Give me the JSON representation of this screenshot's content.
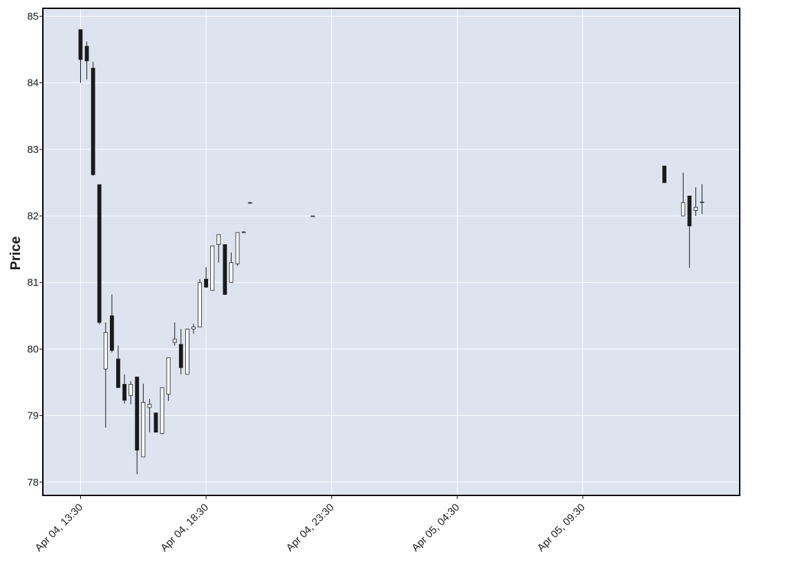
{
  "chart_data": {
    "type": "candlestick",
    "title": "",
    "xlabel": "",
    "ylabel": "Price",
    "ylim": [
      77.8,
      85.12
    ],
    "y_ticks": [
      78,
      79,
      80,
      81,
      82,
      83,
      84,
      85
    ],
    "x_ticks": [
      "Apr 04, 13:30",
      "Apr 04, 18:30",
      "Apr 04, 23:30",
      "Apr 05, 04:30",
      "Apr 05, 09:30"
    ],
    "x_tick_hours": [
      0,
      5,
      10,
      15,
      20
    ],
    "x_range_hours": [
      -1.5,
      26.25
    ],
    "grid": true,
    "colors": {
      "background": "#dde3ef",
      "grid": "#ffffff",
      "up_fill": "#ffffff",
      "down_fill": "#1a1a1a",
      "edge": "#1a1a1a"
    },
    "candles": [
      {
        "t": 0.0,
        "o": 84.8,
        "h": 84.8,
        "l": 84.0,
        "c": 84.35
      },
      {
        "t": 0.25,
        "o": 84.55,
        "h": 84.62,
        "l": 84.05,
        "c": 84.33
      },
      {
        "t": 0.5,
        "o": 84.22,
        "h": 84.32,
        "l": 82.6,
        "c": 82.62
      },
      {
        "t": 0.75,
        "o": 82.47,
        "h": 82.47,
        "l": 80.37,
        "c": 80.4
      },
      {
        "t": 1.0,
        "o": 79.7,
        "h": 80.4,
        "l": 78.82,
        "c": 80.25
      },
      {
        "t": 1.25,
        "o": 80.5,
        "h": 80.82,
        "l": 79.95,
        "c": 79.98
      },
      {
        "t": 1.5,
        "o": 79.85,
        "h": 80.05,
        "l": 79.42,
        "c": 79.42
      },
      {
        "t": 1.75,
        "o": 79.47,
        "h": 79.62,
        "l": 79.18,
        "c": 79.23
      },
      {
        "t": 2.0,
        "o": 79.3,
        "h": 79.52,
        "l": 79.17,
        "c": 79.47
      },
      {
        "t": 2.25,
        "o": 79.58,
        "h": 79.58,
        "l": 78.12,
        "c": 78.48
      },
      {
        "t": 2.5,
        "o": 78.38,
        "h": 79.48,
        "l": 78.38,
        "c": 79.2
      },
      {
        "t": 2.75,
        "o": 79.12,
        "h": 79.25,
        "l": 78.75,
        "c": 79.17
      },
      {
        "t": 3.0,
        "o": 79.04,
        "h": 79.04,
        "l": 78.75,
        "c": 78.75
      },
      {
        "t": 3.25,
        "o": 78.73,
        "h": 79.42,
        "l": 78.72,
        "c": 79.42
      },
      {
        "t": 3.5,
        "o": 79.32,
        "h": 79.87,
        "l": 79.22,
        "c": 79.87
      },
      {
        "t": 3.75,
        "o": 80.1,
        "h": 80.4,
        "l": 80.05,
        "c": 80.15
      },
      {
        "t": 4.0,
        "o": 80.07,
        "h": 80.3,
        "l": 79.62,
        "c": 79.72
      },
      {
        "t": 4.25,
        "o": 79.62,
        "h": 80.3,
        "l": 79.62,
        "c": 80.3
      },
      {
        "t": 4.5,
        "o": 80.3,
        "h": 80.38,
        "l": 80.23,
        "c": 80.33
      },
      {
        "t": 4.75,
        "o": 80.33,
        "h": 81.05,
        "l": 80.33,
        "c": 81.0
      },
      {
        "t": 5.0,
        "o": 81.05,
        "h": 81.23,
        "l": 80.92,
        "c": 80.93
      },
      {
        "t": 5.25,
        "o": 80.88,
        "h": 81.55,
        "l": 80.88,
        "c": 81.55
      },
      {
        "t": 5.5,
        "o": 81.57,
        "h": 81.72,
        "l": 81.3,
        "c": 81.72
      },
      {
        "t": 5.75,
        "o": 81.57,
        "h": 81.57,
        "l": 80.82,
        "c": 80.82
      },
      {
        "t": 6.0,
        "o": 81.0,
        "h": 81.45,
        "l": 81.0,
        "c": 81.3
      },
      {
        "t": 6.25,
        "o": 81.28,
        "h": 81.75,
        "l": 81.25,
        "c": 81.75
      },
      {
        "t": 6.5,
        "o": 81.75,
        "h": 81.77,
        "l": 81.75,
        "c": 81.76
      },
      {
        "t": 6.75,
        "o": 82.2,
        "h": 82.21,
        "l": 82.2,
        "c": 82.2
      },
      {
        "t": 9.25,
        "o": 82.0,
        "h": 82.0,
        "l": 82.0,
        "c": 82.0
      },
      {
        "t": 23.25,
        "o": 82.75,
        "h": 82.75,
        "l": 82.5,
        "c": 82.5
      },
      {
        "t": 24.0,
        "o": 82.0,
        "h": 82.65,
        "l": 82.0,
        "c": 82.2
      },
      {
        "t": 24.25,
        "o": 82.3,
        "h": 82.3,
        "l": 81.22,
        "c": 81.85
      },
      {
        "t": 24.5,
        "o": 82.08,
        "h": 82.43,
        "l": 82.0,
        "c": 82.13
      },
      {
        "t": 24.75,
        "o": 82.21,
        "h": 82.48,
        "l": 82.03,
        "c": 82.21
      }
    ]
  }
}
